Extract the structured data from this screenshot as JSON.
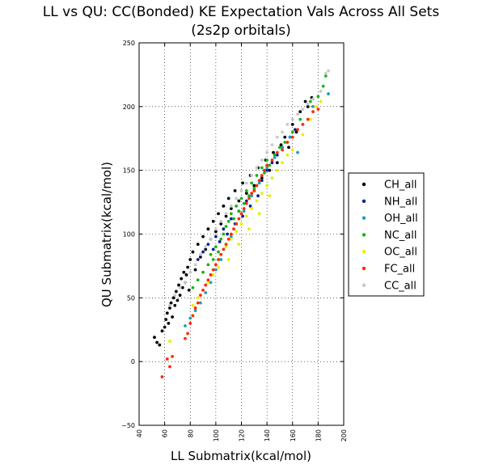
{
  "chart_data": {
    "type": "scatter",
    "title": "LL vs QU: CC(Bonded) KE Expectation Vals Across All Sets",
    "subtitle": "(2s2p orbitals)",
    "xlabel": "LL Submatrix(kcal/mol)",
    "ylabel": "QU Submatrix(kcal/mol)",
    "xlim": [
      40,
      200
    ],
    "ylim": [
      -50,
      250
    ],
    "xticks": [
      40,
      60,
      80,
      100,
      120,
      140,
      160,
      180,
      200
    ],
    "yticks": [
      -50,
      0,
      50,
      100,
      150,
      200,
      250
    ],
    "xtick_labels": [
      "40",
      "60",
      "80",
      "100",
      "120",
      "140",
      "160",
      "180",
      "200"
    ],
    "ytick_labels": [
      "−50",
      "0",
      "50",
      "100",
      "150",
      "200",
      "250"
    ],
    "grid": true,
    "legend_position": "right",
    "series": [
      {
        "name": "CH_all",
        "color": "#000000",
        "points": [
          [
            52,
            19
          ],
          [
            54,
            15
          ],
          [
            56,
            13
          ],
          [
            58,
            24
          ],
          [
            60,
            27
          ],
          [
            61,
            33
          ],
          [
            62,
            38
          ],
          [
            63,
            30
          ],
          [
            64,
            42
          ],
          [
            65,
            46
          ],
          [
            66,
            35
          ],
          [
            67,
            50
          ],
          [
            68,
            44
          ],
          [
            69,
            55
          ],
          [
            70,
            48
          ],
          [
            71,
            60
          ],
          [
            72,
            52
          ],
          [
            73,
            65
          ],
          [
            74,
            58
          ],
          [
            75,
            70
          ],
          [
            76,
            62
          ],
          [
            77,
            68
          ],
          [
            78,
            74
          ],
          [
            79,
            56
          ],
          [
            80,
            80
          ],
          [
            82,
            86
          ],
          [
            84,
            72
          ],
          [
            86,
            92
          ],
          [
            88,
            82
          ],
          [
            90,
            98
          ],
          [
            92,
            88
          ],
          [
            94,
            104
          ],
          [
            96,
            96
          ],
          [
            98,
            110
          ],
          [
            100,
            102
          ],
          [
            102,
            116
          ],
          [
            104,
            108
          ],
          [
            106,
            122
          ],
          [
            108,
            114
          ],
          [
            110,
            128
          ],
          [
            112,
            120
          ],
          [
            115,
            134
          ],
          [
            118,
            126
          ],
          [
            121,
            140
          ],
          [
            124,
            132
          ],
          [
            127,
            146
          ],
          [
            130,
            138
          ],
          [
            133,
            152
          ],
          [
            136,
            144
          ],
          [
            139,
            158
          ],
          [
            142,
            150
          ],
          [
            145,
            164
          ],
          [
            148,
            156
          ],
          [
            151,
            170
          ],
          [
            154,
            176
          ],
          [
            157,
            168
          ],
          [
            160,
            186
          ],
          [
            163,
            180
          ],
          [
            166,
            196
          ],
          [
            170,
            204
          ],
          [
            172,
            200
          ],
          [
            175,
            207
          ]
        ]
      },
      {
        "name": "NH_all",
        "color": "#0a1fa0",
        "points": [
          [
            86,
            80
          ],
          [
            90,
            86
          ],
          [
            94,
            92
          ],
          [
            98,
            88
          ],
          [
            100,
            98
          ],
          [
            103,
            94
          ],
          [
            106,
            104
          ],
          [
            109,
            100
          ],
          [
            112,
            112
          ],
          [
            115,
            108
          ],
          [
            118,
            118
          ],
          [
            121,
            114
          ],
          [
            124,
            126
          ],
          [
            127,
            122
          ],
          [
            130,
            134
          ],
          [
            133,
            130
          ],
          [
            136,
            142
          ],
          [
            140,
            150
          ],
          [
            144,
            156
          ],
          [
            148,
            162
          ],
          [
            152,
            168
          ],
          [
            158,
            176
          ],
          [
            162,
            182
          ]
        ]
      },
      {
        "name": "OH_all",
        "color": "#1e9ebd",
        "points": [
          [
            76,
            28
          ],
          [
            80,
            34
          ],
          [
            84,
            40
          ],
          [
            88,
            46
          ],
          [
            92,
            54
          ],
          [
            96,
            62
          ],
          [
            100,
            72
          ],
          [
            104,
            80
          ],
          [
            108,
            90
          ],
          [
            112,
            98
          ],
          [
            116,
            108
          ],
          [
            122,
            118
          ],
          [
            128,
            130
          ],
          [
            134,
            140
          ],
          [
            140,
            152
          ],
          [
            146,
            160
          ],
          [
            152,
            168
          ],
          [
            158,
            176
          ],
          [
            164,
            164
          ],
          [
            176,
            200
          ],
          [
            188,
            210
          ]
        ]
      },
      {
        "name": "NC_all",
        "color": "#14b814",
        "points": [
          [
            82,
            58
          ],
          [
            86,
            64
          ],
          [
            90,
            70
          ],
          [
            94,
            76
          ],
          [
            96,
            84
          ],
          [
            98,
            80
          ],
          [
            100,
            90
          ],
          [
            102,
            86
          ],
          [
            104,
            96
          ],
          [
            106,
            100
          ],
          [
            108,
            106
          ],
          [
            110,
            110
          ],
          [
            112,
            116
          ],
          [
            114,
            112
          ],
          [
            116,
            122
          ],
          [
            118,
            118
          ],
          [
            120,
            128
          ],
          [
            122,
            124
          ],
          [
            124,
            134
          ],
          [
            126,
            130
          ],
          [
            128,
            140
          ],
          [
            130,
            136
          ],
          [
            132,
            146
          ],
          [
            134,
            142
          ],
          [
            136,
            152
          ],
          [
            138,
            148
          ],
          [
            140,
            158
          ],
          [
            142,
            154
          ],
          [
            146,
            162
          ],
          [
            150,
            168
          ],
          [
            154,
            172
          ],
          [
            160,
            180
          ],
          [
            166,
            190
          ],
          [
            174,
            204
          ],
          [
            180,
            208
          ],
          [
            184,
            216
          ],
          [
            186,
            224
          ]
        ]
      },
      {
        "name": "OC_all",
        "color": "#e8f000",
        "points": [
          [
            64,
            16
          ],
          [
            82,
            44
          ],
          [
            86,
            50
          ],
          [
            90,
            56
          ],
          [
            94,
            62
          ],
          [
            98,
            68
          ],
          [
            102,
            74
          ],
          [
            104,
            84
          ],
          [
            108,
            90
          ],
          [
            110,
            80
          ],
          [
            112,
            96
          ],
          [
            116,
            102
          ],
          [
            118,
            92
          ],
          [
            120,
            108
          ],
          [
            124,
            114
          ],
          [
            126,
            104
          ],
          [
            128,
            120
          ],
          [
            132,
            126
          ],
          [
            134,
            116
          ],
          [
            136,
            132
          ],
          [
            140,
            138
          ],
          [
            142,
            130
          ],
          [
            144,
            144
          ],
          [
            148,
            150
          ],
          [
            152,
            156
          ],
          [
            156,
            162
          ],
          [
            160,
            166
          ],
          [
            168,
            178
          ],
          [
            174,
            190
          ],
          [
            178,
            200
          ],
          [
            182,
            204
          ]
        ]
      },
      {
        "name": "FC_all",
        "color": "#ff2a00",
        "points": [
          [
            58,
            -12
          ],
          [
            62,
            2
          ],
          [
            64,
            -4
          ],
          [
            66,
            4
          ],
          [
            76,
            18
          ],
          [
            78,
            22
          ],
          [
            80,
            30
          ],
          [
            82,
            36
          ],
          [
            84,
            42
          ],
          [
            86,
            46
          ],
          [
            88,
            52
          ],
          [
            90,
            56
          ],
          [
            92,
            60
          ],
          [
            94,
            64
          ],
          [
            96,
            68
          ],
          [
            98,
            72
          ],
          [
            100,
            76
          ],
          [
            102,
            80
          ],
          [
            104,
            84
          ],
          [
            106,
            88
          ],
          [
            108,
            92
          ],
          [
            110,
            96
          ],
          [
            112,
            100
          ],
          [
            114,
            104
          ],
          [
            116,
            108
          ],
          [
            118,
            112
          ],
          [
            120,
            116
          ],
          [
            122,
            120
          ],
          [
            124,
            124
          ],
          [
            126,
            128
          ],
          [
            128,
            132
          ],
          [
            130,
            134
          ],
          [
            132,
            138
          ],
          [
            134,
            142
          ],
          [
            136,
            146
          ],
          [
            138,
            150
          ],
          [
            140,
            154
          ],
          [
            144,
            158
          ],
          [
            148,
            164
          ],
          [
            152,
            166
          ],
          [
            156,
            172
          ],
          [
            160,
            176
          ],
          [
            164,
            182
          ],
          [
            168,
            186
          ],
          [
            172,
            190
          ],
          [
            176,
            196
          ],
          [
            180,
            198
          ]
        ]
      },
      {
        "name": "CC_all",
        "color": "#c8c8c8",
        "points": [
          [
            64,
            44
          ],
          [
            68,
            52
          ],
          [
            72,
            58
          ],
          [
            76,
            62
          ],
          [
            80,
            70
          ],
          [
            84,
            76
          ],
          [
            88,
            84
          ],
          [
            92,
            90
          ],
          [
            96,
            96
          ],
          [
            100,
            104
          ],
          [
            104,
            110
          ],
          [
            108,
            116
          ],
          [
            112,
            122
          ],
          [
            116,
            128
          ],
          [
            120,
            134
          ],
          [
            124,
            140
          ],
          [
            128,
            146
          ],
          [
            132,
            152
          ],
          [
            136,
            158
          ],
          [
            140,
            164
          ],
          [
            144,
            170
          ],
          [
            148,
            176
          ],
          [
            152,
            180
          ],
          [
            156,
            186
          ],
          [
            160,
            190
          ],
          [
            164,
            194
          ],
          [
            168,
            198
          ],
          [
            172,
            202
          ],
          [
            176,
            206
          ],
          [
            182,
            212
          ],
          [
            188,
            228
          ],
          [
            186,
            226
          ]
        ]
      }
    ]
  }
}
